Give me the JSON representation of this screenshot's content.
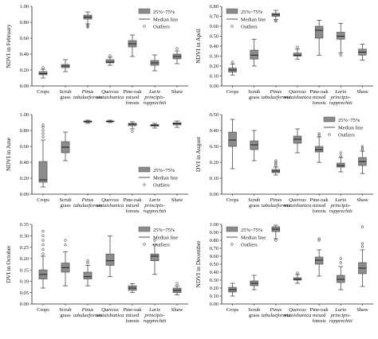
{
  "legend": {
    "box_label": "25%~75%",
    "median_label": "Median line",
    "outlier_label": "Outliers"
  },
  "categories": [
    [
      "Crops"
    ],
    [
      "Scrub",
      "grass"
    ],
    [
      "Pinus",
      "tabulaeformis"
    ],
    [
      "Quercus",
      "wutaishanica"
    ],
    [
      "Pine-oak",
      "mixed",
      "forests"
    ],
    [
      "Larix",
      "principis-",
      "rupprechtii"
    ],
    [
      "Shaw"
    ]
  ],
  "category_italic": [
    false,
    false,
    true,
    true,
    false,
    true,
    false
  ],
  "colors": {
    "box": "#8c8c8c",
    "outlier": "#555555",
    "axis": "#222222",
    "text": "#111111"
  },
  "chart_data": [
    {
      "type": "boxplot",
      "ylabel": "NDVI in February",
      "ylim": [
        0,
        1.0
      ],
      "yticks": [
        "0.00",
        "0.20",
        "0.40",
        "0.60",
        "0.80",
        "1.00"
      ],
      "ytick_values": [
        0,
        0.2,
        0.4,
        0.6,
        0.8,
        1.0
      ],
      "legend_position": "top-right",
      "boxes": [
        {
          "min": 0.1,
          "q1": 0.14,
          "median": 0.155,
          "q3": 0.18,
          "max": 0.21,
          "outliers": [
            0.23
          ]
        },
        {
          "min": 0.18,
          "q1": 0.23,
          "median": 0.25,
          "q3": 0.27,
          "max": 0.33,
          "outliers": []
        },
        {
          "min": 0.78,
          "q1": 0.84,
          "median": 0.865,
          "q3": 0.89,
          "max": 0.93,
          "outliers": [
            0.76,
            0.75,
            0.74
          ]
        },
        {
          "min": 0.26,
          "q1": 0.29,
          "median": 0.3,
          "q3": 0.33,
          "max": 0.36,
          "outliers": [
            0.38
          ]
        },
        {
          "min": 0.37,
          "q1": 0.49,
          "median": 0.53,
          "q3": 0.57,
          "max": 0.64,
          "outliers": []
        },
        {
          "min": 0.19,
          "q1": 0.26,
          "median": 0.29,
          "q3": 0.32,
          "max": 0.39,
          "outliers": []
        },
        {
          "min": 0.28,
          "q1": 0.34,
          "median": 0.37,
          "q3": 0.4,
          "max": 0.44,
          "outliers": [
            0.47
          ]
        }
      ]
    },
    {
      "type": "boxplot",
      "ylabel": "NDVI in April",
      "ylim": [
        0,
        0.8
      ],
      "yticks": [
        "0.00",
        "0.10",
        "0.20",
        "0.30",
        "0.40",
        "0.50",
        "0.60",
        "0.70",
        "0.80"
      ],
      "ytick_values": [
        0,
        0.1,
        0.2,
        0.3,
        0.4,
        0.5,
        0.6,
        0.7,
        0.8
      ],
      "legend_position": "top-left",
      "boxes": [
        {
          "min": 0.11,
          "q1": 0.14,
          "median": 0.16,
          "q3": 0.18,
          "max": 0.22,
          "outliers": [
            0.24
          ]
        },
        {
          "min": 0.2,
          "q1": 0.27,
          "median": 0.31,
          "q3": 0.36,
          "max": 0.47,
          "outliers": []
        },
        {
          "min": 0.67,
          "q1": 0.7,
          "median": 0.715,
          "q3": 0.73,
          "max": 0.76,
          "outliers": [
            0.66,
            0.65
          ]
        },
        {
          "min": 0.27,
          "q1": 0.3,
          "median": 0.31,
          "q3": 0.33,
          "max": 0.37,
          "outliers": [
            0.39
          ]
        },
        {
          "min": 0.31,
          "q1": 0.48,
          "median": 0.56,
          "q3": 0.6,
          "max": 0.66,
          "outliers": []
        },
        {
          "min": 0.33,
          "q1": 0.47,
          "median": 0.5,
          "q3": 0.54,
          "max": 0.63,
          "outliers": [
            0.31
          ]
        },
        {
          "min": 0.26,
          "q1": 0.31,
          "median": 0.34,
          "q3": 0.37,
          "max": 0.42,
          "outliers": []
        }
      ]
    },
    {
      "type": "boxplot",
      "ylabel": "NDVI in June",
      "ylim": [
        0,
        1.0
      ],
      "yticks": [
        "0.00",
        "0.20",
        "0.40",
        "0.60",
        "0.80",
        "1.00"
      ],
      "ytick_values": [
        0,
        0.2,
        0.4,
        0.6,
        0.8,
        1.0
      ],
      "legend_position": "bottom-right",
      "boxes": [
        {
          "min": 0.09,
          "q1": 0.15,
          "median": 0.18,
          "q3": 0.41,
          "max": 0.68,
          "outliers": [
            0.72,
            0.76,
            0.8,
            0.84,
            0.87
          ]
        },
        {
          "min": 0.42,
          "q1": 0.52,
          "median": 0.59,
          "q3": 0.66,
          "max": 0.78,
          "outliers": []
        },
        {
          "min": 0.89,
          "q1": 0.905,
          "median": 0.91,
          "q3": 0.92,
          "max": 0.93,
          "outliers": []
        },
        {
          "min": 0.9,
          "q1": 0.91,
          "median": 0.915,
          "q3": 0.92,
          "max": 0.93,
          "outliers": []
        },
        {
          "min": 0.82,
          "q1": 0.86,
          "median": 0.88,
          "q3": 0.89,
          "max": 0.91,
          "outliers": [
            0.79
          ]
        },
        {
          "min": 0.83,
          "q1": 0.855,
          "median": 0.865,
          "q3": 0.875,
          "max": 0.89,
          "outliers": []
        },
        {
          "min": 0.84,
          "q1": 0.87,
          "median": 0.885,
          "q3": 0.9,
          "max": 0.92,
          "outliers": []
        }
      ]
    },
    {
      "type": "boxplot",
      "ylabel": "DVI in August",
      "ylim": [
        0,
        0.5
      ],
      "yticks": [
        "0.00",
        "0.10",
        "0.20",
        "0.30",
        "0.40",
        "0.50"
      ],
      "ytick_values": [
        0,
        0.1,
        0.2,
        0.3,
        0.4,
        0.5
      ],
      "legend_position": "top-right",
      "boxes": [
        {
          "min": 0.16,
          "q1": 0.3,
          "median": 0.34,
          "q3": 0.39,
          "max": 0.47,
          "outliers": []
        },
        {
          "min": 0.21,
          "q1": 0.28,
          "median": 0.31,
          "q3": 0.335,
          "max": 0.4,
          "outliers": []
        },
        {
          "min": 0.12,
          "q1": 0.135,
          "median": 0.145,
          "q3": 0.155,
          "max": 0.17,
          "outliers": [
            0.18,
            0.19,
            0.2,
            0.21
          ]
        },
        {
          "min": 0.26,
          "q1": 0.32,
          "median": 0.345,
          "q3": 0.365,
          "max": 0.41,
          "outliers": []
        },
        {
          "min": 0.2,
          "q1": 0.265,
          "median": 0.28,
          "q3": 0.3,
          "max": 0.36,
          "outliers": [
            0.37,
            0.38
          ]
        },
        {
          "min": 0.14,
          "q1": 0.17,
          "median": 0.18,
          "q3": 0.195,
          "max": 0.23,
          "outliers": [
            0.24,
            0.26
          ]
        },
        {
          "min": 0.13,
          "q1": 0.18,
          "median": 0.205,
          "q3": 0.23,
          "max": 0.27,
          "outliers": [
            0.28,
            0.29,
            0.3
          ]
        }
      ]
    },
    {
      "type": "boxplot",
      "ylabel": "DVI in October",
      "ylim": [
        0,
        0.35
      ],
      "yticks": [
        "0.00",
        "0.05",
        "0.10",
        "0.15",
        "0.20",
        "0.25",
        "0.30",
        "0.35"
      ],
      "ytick_values": [
        0,
        0.05,
        0.1,
        0.15,
        0.2,
        0.25,
        0.3,
        0.35
      ],
      "legend_position": "top-right",
      "boxes": [
        {
          "min": 0.07,
          "q1": 0.11,
          "median": 0.13,
          "q3": 0.15,
          "max": 0.21,
          "outliers": [
            0.22,
            0.24,
            0.26,
            0.28,
            0.3,
            0.32
          ]
        },
        {
          "min": 0.08,
          "q1": 0.14,
          "median": 0.16,
          "q3": 0.18,
          "max": 0.23,
          "outliers": [
            0.26,
            0.28
          ]
        },
        {
          "min": 0.08,
          "q1": 0.11,
          "median": 0.12,
          "q3": 0.14,
          "max": 0.17,
          "outliers": [
            0.18,
            0.19
          ]
        },
        {
          "min": 0.12,
          "q1": 0.17,
          "median": 0.19,
          "q3": 0.22,
          "max": 0.3,
          "outliers": []
        },
        {
          "min": 0.05,
          "q1": 0.06,
          "median": 0.07,
          "q3": 0.08,
          "max": 0.09,
          "outliers": []
        },
        {
          "min": 0.13,
          "q1": 0.19,
          "median": 0.21,
          "q3": 0.22,
          "max": 0.26,
          "outliers": [
            0.28
          ]
        },
        {
          "min": 0.04,
          "q1": 0.05,
          "median": 0.06,
          "q3": 0.07,
          "max": 0.08,
          "outliers": [
            0.09
          ]
        }
      ]
    },
    {
      "type": "boxplot",
      "ylabel": "NDVI in December",
      "ylim": [
        0,
        1.0
      ],
      "yticks": [
        "0.00",
        "0.10",
        "0.20",
        "0.30",
        "0.40",
        "0.50",
        "0.60",
        "0.70",
        "0.80",
        "0.90",
        "1.00"
      ],
      "ytick_values": [
        0,
        0.1,
        0.2,
        0.3,
        0.4,
        0.5,
        0.6,
        0.7,
        0.8,
        0.9,
        1.0
      ],
      "legend_position": "top-left",
      "boxes": [
        {
          "min": 0.1,
          "q1": 0.15,
          "median": 0.18,
          "q3": 0.21,
          "max": 0.26,
          "outliers": []
        },
        {
          "min": 0.18,
          "q1": 0.23,
          "median": 0.26,
          "q3": 0.29,
          "max": 0.36,
          "outliers": []
        },
        {
          "min": 0.82,
          "q1": 0.91,
          "median": 0.94,
          "q3": 0.97,
          "max": 0.99,
          "outliers": [
            0.8
          ]
        },
        {
          "min": 0.26,
          "q1": 0.3,
          "median": 0.31,
          "q3": 0.33,
          "max": 0.37,
          "outliers": [
            0.39
          ]
        },
        {
          "min": 0.35,
          "q1": 0.5,
          "median": 0.55,
          "q3": 0.59,
          "max": 0.68,
          "outliers": [
            0.8,
            0.82
          ]
        },
        {
          "min": 0.18,
          "q1": 0.27,
          "median": 0.31,
          "q3": 0.36,
          "max": 0.47,
          "outliers": [
            0.52,
            0.57
          ]
        },
        {
          "min": 0.22,
          "q1": 0.38,
          "median": 0.45,
          "q3": 0.52,
          "max": 0.68,
          "outliers": [
            0.72,
            0.76,
            0.97
          ]
        }
      ]
    }
  ]
}
